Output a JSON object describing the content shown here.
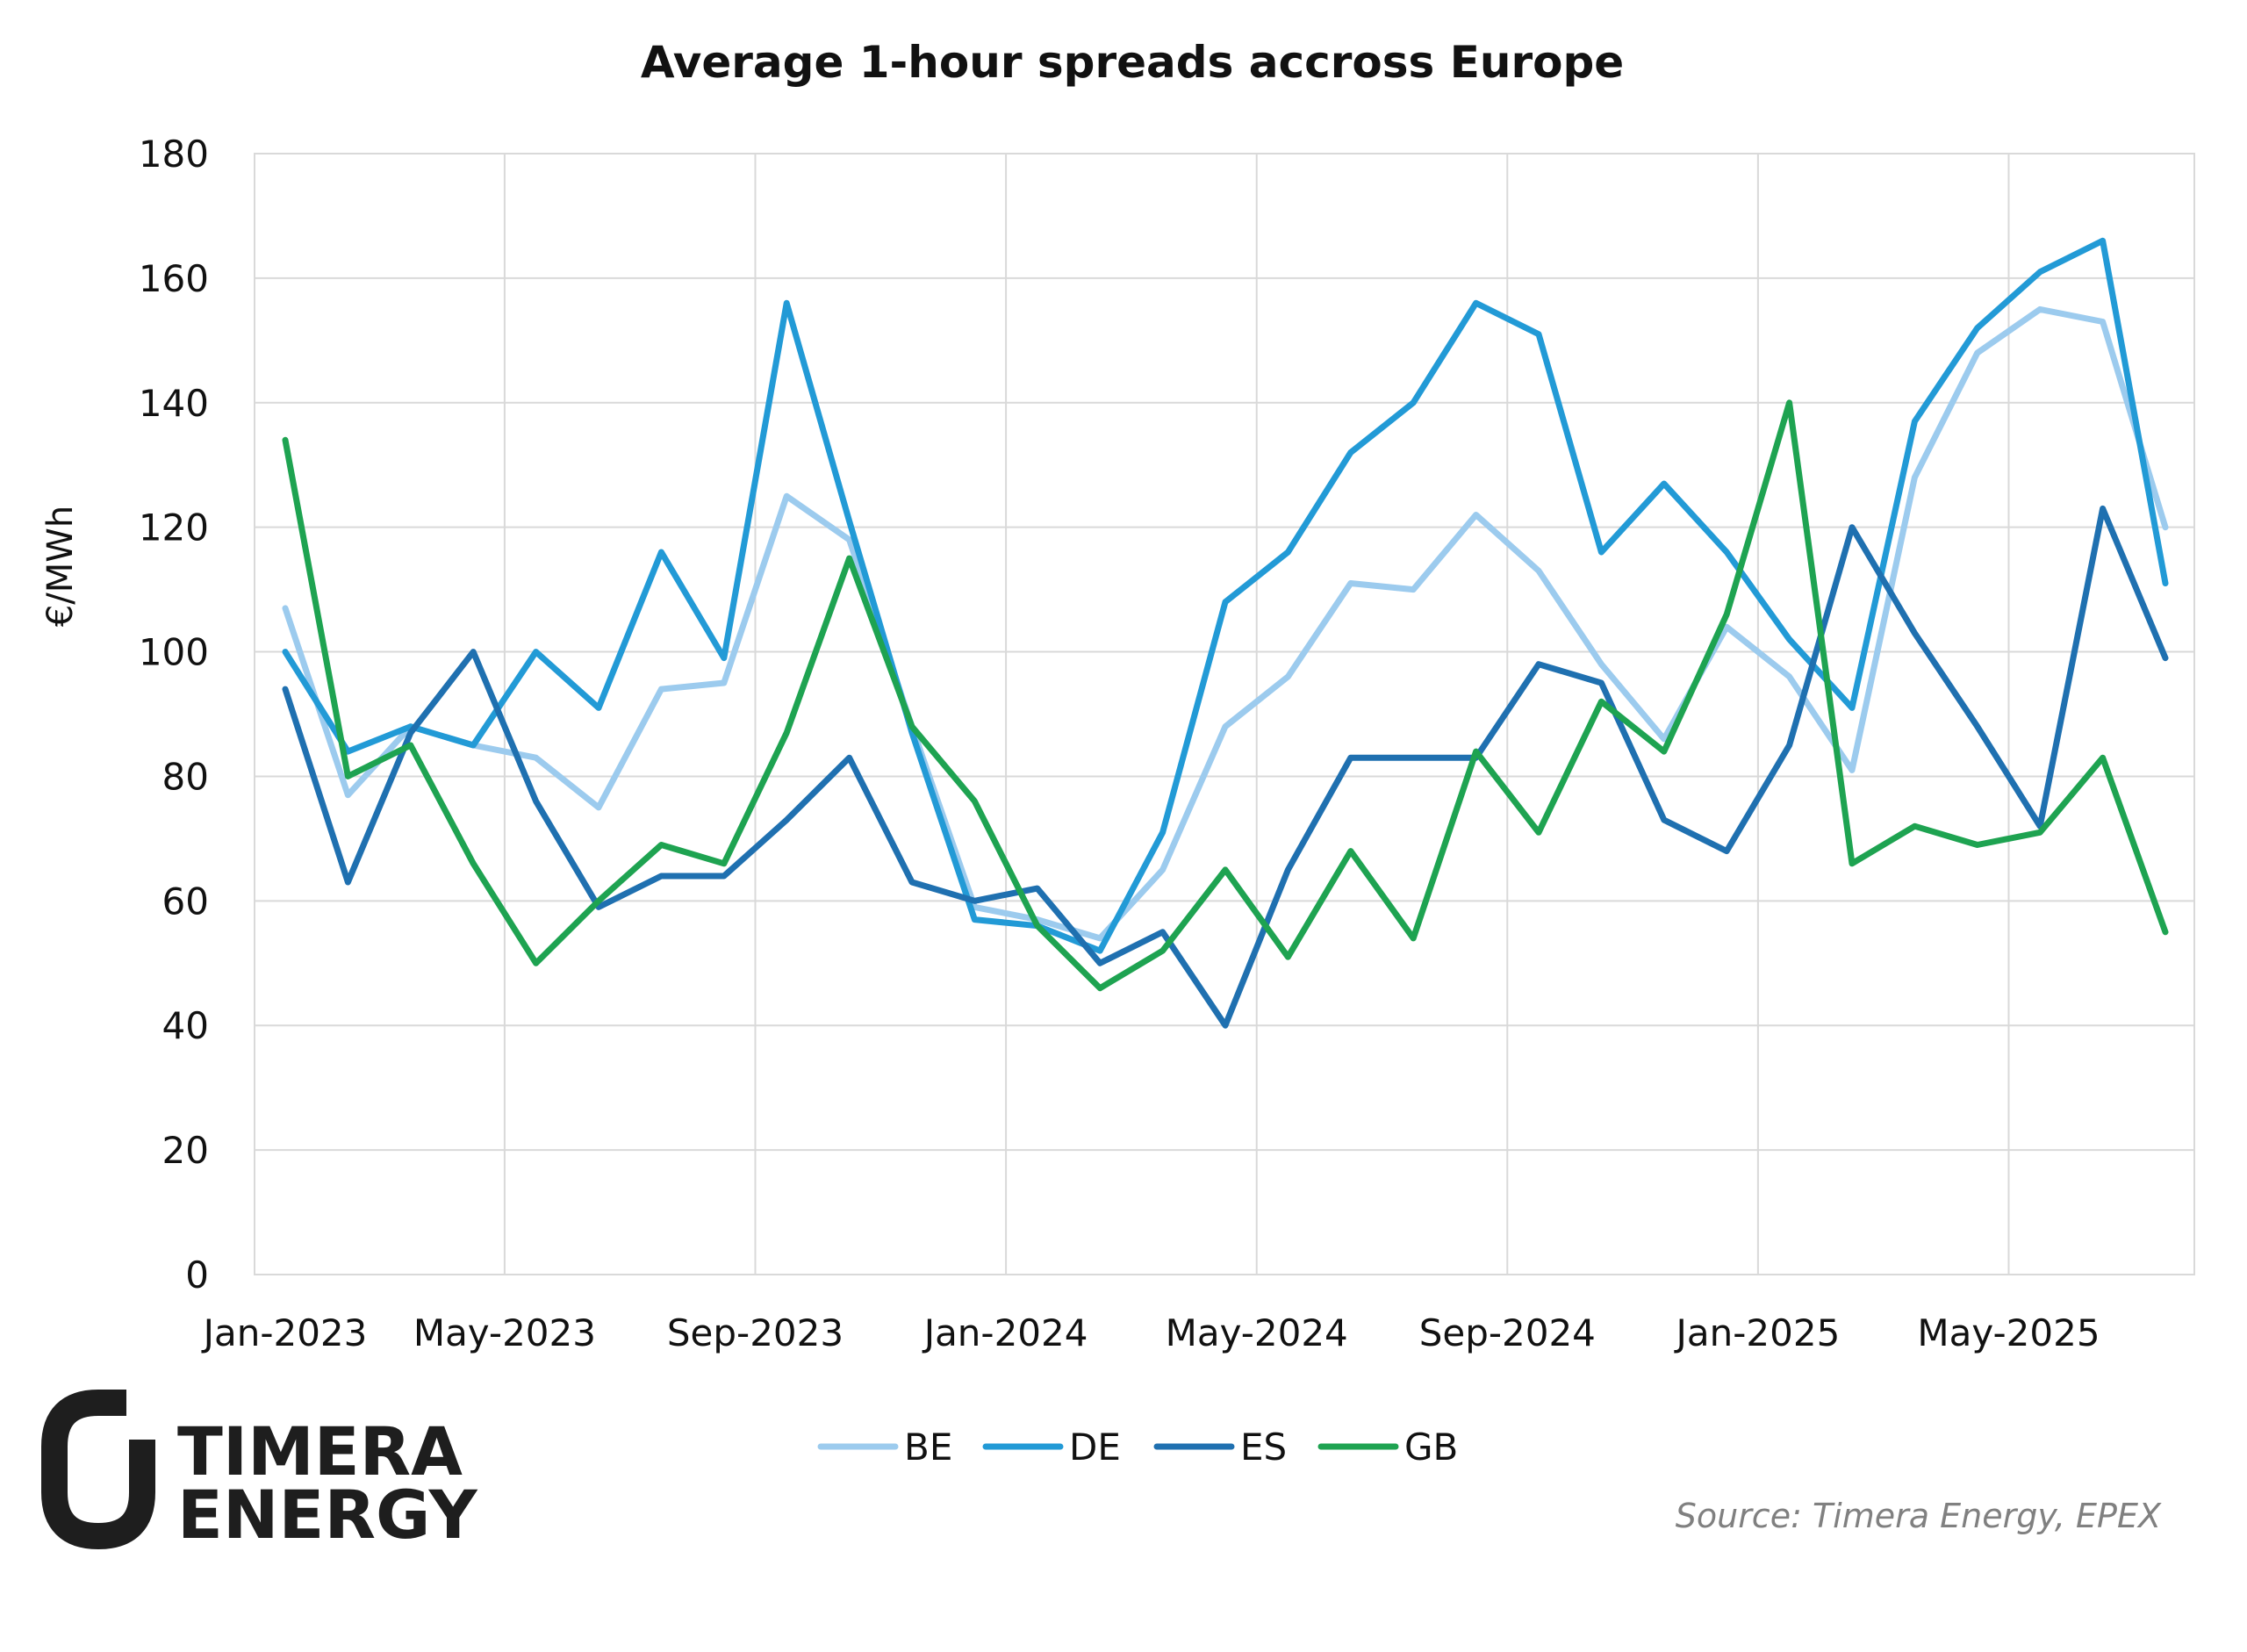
{
  "chart_data": {
    "type": "line",
    "title": "Average 1-hour spreads accross Europe",
    "ylabel": "€/MWh",
    "xlabel": "",
    "ylim": [
      0,
      180
    ],
    "yticks": [
      0,
      20,
      40,
      60,
      80,
      100,
      120,
      140,
      160,
      180
    ],
    "x": [
      "Jan-2023",
      "Feb-2023",
      "Mar-2023",
      "Apr-2023",
      "May-2023",
      "Jun-2023",
      "Jul-2023",
      "Aug-2023",
      "Sep-2023",
      "Oct-2023",
      "Nov-2023",
      "Dec-2023",
      "Jan-2024",
      "Feb-2024",
      "Mar-2024",
      "Apr-2024",
      "May-2024",
      "Jun-2024",
      "Jul-2024",
      "Aug-2024",
      "Sep-2024",
      "Oct-2024",
      "Nov-2024",
      "Dec-2024",
      "Jan-2025",
      "Feb-2025",
      "Mar-2025",
      "Apr-2025",
      "May-2025",
      "Jun-2025",
      "Jul-2025"
    ],
    "xticks": [
      "Jan-2023",
      "May-2023",
      "Sep-2023",
      "Jan-2024",
      "May-2024",
      "Sep-2024",
      "Jan-2025",
      "May-2025"
    ],
    "grid": true,
    "legend_position": "bottom",
    "series": [
      {
        "name": "BE",
        "color": "#9ccbee",
        "values": [
          107,
          77,
          88,
          85,
          83,
          75,
          94,
          95,
          125,
          118,
          88,
          59,
          57,
          54,
          65,
          88,
          96,
          111,
          110,
          122,
          113,
          98,
          86,
          104,
          96,
          81,
          128,
          148,
          155,
          153,
          120
        ]
      },
      {
        "name": "DE",
        "color": "#229ad6",
        "values": [
          100,
          84,
          88,
          85,
          100,
          91,
          116,
          99,
          156,
          121,
          87,
          57,
          56,
          52,
          71,
          108,
          116,
          132,
          140,
          156,
          151,
          116,
          127,
          116,
          102,
          91,
          137,
          152,
          161,
          166,
          111
        ]
      },
      {
        "name": "ES",
        "color": "#1f70b0",
        "values": [
          94,
          63,
          87,
          100,
          76,
          59,
          64,
          64,
          73,
          83,
          63,
          60,
          62,
          50,
          55,
          40,
          65,
          83,
          83,
          83,
          98,
          95,
          73,
          68,
          85,
          120,
          103,
          88,
          72,
          123,
          99
        ]
      },
      {
        "name": "GB",
        "color": "#1ea351",
        "values": [
          134,
          80,
          85,
          66,
          50,
          60,
          69,
          66,
          87,
          115,
          88,
          76,
          56,
          46,
          52,
          65,
          51,
          68,
          54,
          84,
          71,
          92,
          84,
          106,
          140,
          66,
          72,
          69,
          71,
          83,
          55
        ]
      }
    ]
  },
  "source": "Source: Timera Energy, EPEX",
  "logo": {
    "line1": "TIMERA",
    "line2": "ENERGY"
  }
}
